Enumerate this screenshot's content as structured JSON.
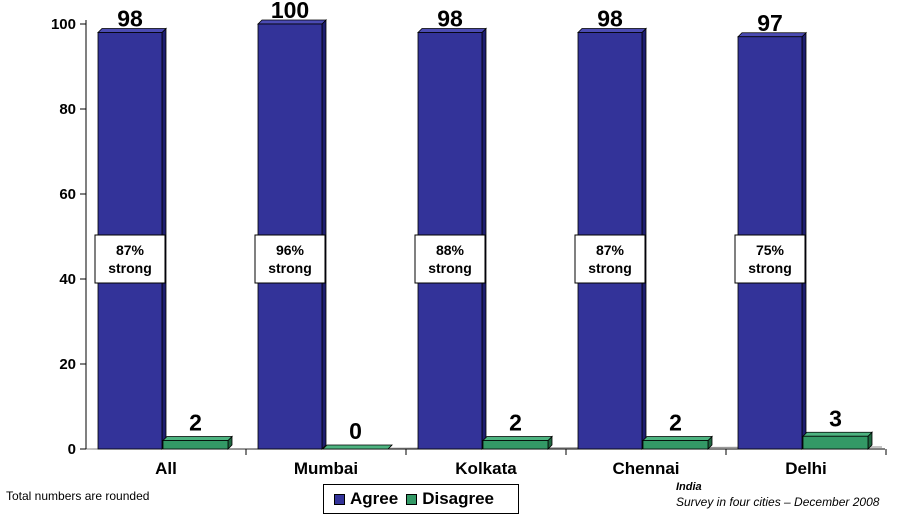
{
  "colors": {
    "agree": "#333399",
    "agree_top": "#4B4BB3",
    "agree_side": "#1E1E70",
    "disagree": "#339966",
    "disagree_top": "#4DB380",
    "disagree_side": "#1E6640"
  },
  "chart_data": {
    "type": "bar",
    "categories": [
      "All",
      "Mumbai",
      "Kolkata",
      "Chennai",
      "Delhi"
    ],
    "series": [
      {
        "name": "Agree",
        "values": [
          98,
          100,
          98,
          98,
          97
        ]
      },
      {
        "name": "Disagree",
        "values": [
          2,
          0,
          2,
          2,
          3
        ]
      }
    ],
    "strong_labels": [
      {
        "pct": "87%",
        "word": "strong"
      },
      {
        "pct": "96%",
        "word": "strong"
      },
      {
        "pct": "88%",
        "word": "strong"
      },
      {
        "pct": "87%",
        "word": "strong"
      },
      {
        "pct": "75%",
        "word": "strong"
      }
    ],
    "yticks": [
      "0",
      "20",
      "40",
      "60",
      "80",
      "100"
    ],
    "ylim": [
      0,
      100
    ],
    "legend_position": "bottom",
    "grid": false,
    "style": "3d"
  },
  "footnote_left": "Total numbers are rounded",
  "source": {
    "country": "India",
    "survey": "Survey in four cities – December 2008"
  },
  "legend": {
    "agree": "Agree",
    "disagree": "Disagree"
  }
}
